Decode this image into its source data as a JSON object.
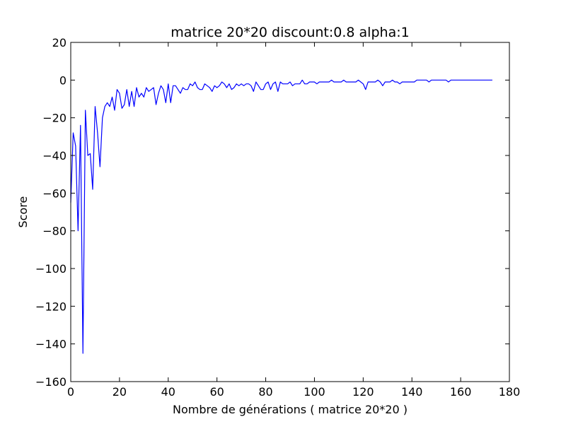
{
  "chart_data": {
    "type": "line",
    "title": "matrice 20*20 discount:0.8 alpha:1",
    "xlabel": "Nombre de générations ( matrice 20*20 )",
    "ylabel": "Score",
    "xlim": [
      0,
      180
    ],
    "ylim": [
      -160,
      20
    ],
    "xticks": [
      0,
      20,
      40,
      60,
      80,
      100,
      120,
      140,
      160,
      180
    ],
    "yticks": [
      -160,
      -140,
      -120,
      -100,
      -80,
      -60,
      -40,
      -20,
      0,
      20
    ],
    "grid": false,
    "series": [
      {
        "color": "#0000ff",
        "x": [
          0,
          1,
          2,
          3,
          4,
          5,
          6,
          7,
          8,
          9,
          10,
          11,
          12,
          13,
          14,
          15,
          16,
          17,
          18,
          19,
          20,
          21,
          22,
          23,
          24,
          25,
          26,
          27,
          28,
          29,
          30,
          31,
          32,
          33,
          34,
          35,
          36,
          37,
          38,
          39,
          40,
          41,
          42,
          43,
          44,
          45,
          46,
          47,
          48,
          49,
          50,
          51,
          52,
          53,
          54,
          55,
          56,
          57,
          58,
          59,
          60,
          61,
          62,
          63,
          64,
          65,
          66,
          67,
          68,
          69,
          70,
          71,
          72,
          73,
          74,
          75,
          76,
          77,
          78,
          79,
          80,
          81,
          82,
          83,
          84,
          85,
          86,
          87,
          88,
          89,
          90,
          91,
          92,
          93,
          94,
          95,
          96,
          97,
          98,
          99,
          100,
          101,
          102,
          103,
          104,
          105,
          106,
          107,
          108,
          109,
          110,
          111,
          112,
          113,
          114,
          115,
          116,
          117,
          118,
          119,
          120,
          121,
          122,
          123,
          124,
          125,
          126,
          127,
          128,
          129,
          130,
          131,
          132,
          133,
          134,
          135,
          136,
          137,
          138,
          139,
          140,
          141,
          142,
          143,
          144,
          145,
          146,
          147,
          148,
          149,
          150,
          151,
          152,
          153,
          154,
          155,
          156,
          157,
          158,
          159,
          160,
          161,
          162,
          163,
          164,
          165,
          166,
          167,
          168,
          169,
          170,
          171,
          172,
          173
        ],
        "y": [
          -65,
          -28,
          -35,
          -80,
          -24,
          -145,
          -16,
          -40,
          -39,
          -58,
          -14,
          -28,
          -46,
          -20,
          -14,
          -12,
          -14,
          -9,
          -16,
          -5,
          -7,
          -15,
          -13,
          -5,
          -14,
          -6,
          -14,
          -4,
          -9,
          -7,
          -9,
          -4,
          -6,
          -5,
          -4,
          -13,
          -7,
          -3,
          -5,
          -12,
          -2,
          -12,
          -3,
          -3,
          -5,
          -7,
          -4,
          -5,
          -5,
          -2,
          -3,
          -1,
          -4,
          -5,
          -5,
          -2,
          -3,
          -4,
          -6,
          -3,
          -4,
          -3,
          -1,
          -2,
          -4,
          -2,
          -5,
          -4,
          -2,
          -3,
          -2,
          -3,
          -2,
          -2,
          -3,
          -6,
          -1,
          -3,
          -5,
          -5,
          -2,
          -1,
          -5,
          -2,
          -1,
          -6,
          -1,
          -2,
          -2,
          -2,
          -1,
          -3,
          -2,
          -2,
          -2,
          0,
          -2,
          -2,
          -1,
          -1,
          -1,
          -2,
          -1,
          -1,
          -1,
          -1,
          -1,
          0,
          -1,
          -1,
          -1,
          -1,
          0,
          -1,
          -1,
          -1,
          -1,
          -1,
          0,
          -1,
          -2,
          -5,
          -1,
          -1,
          -1,
          -1,
          0,
          -1,
          -3,
          -1,
          -1,
          -1,
          0,
          -1,
          -1,
          -2,
          -1,
          -1,
          -1,
          -1,
          -1,
          -1,
          0,
          0,
          0,
          0,
          0,
          -1,
          0,
          0,
          0,
          0,
          0,
          0,
          0,
          -1,
          0,
          0,
          0,
          0,
          0,
          0,
          0,
          0,
          0,
          0,
          0,
          0,
          0,
          0,
          0,
          0,
          0,
          0
        ]
      }
    ]
  }
}
